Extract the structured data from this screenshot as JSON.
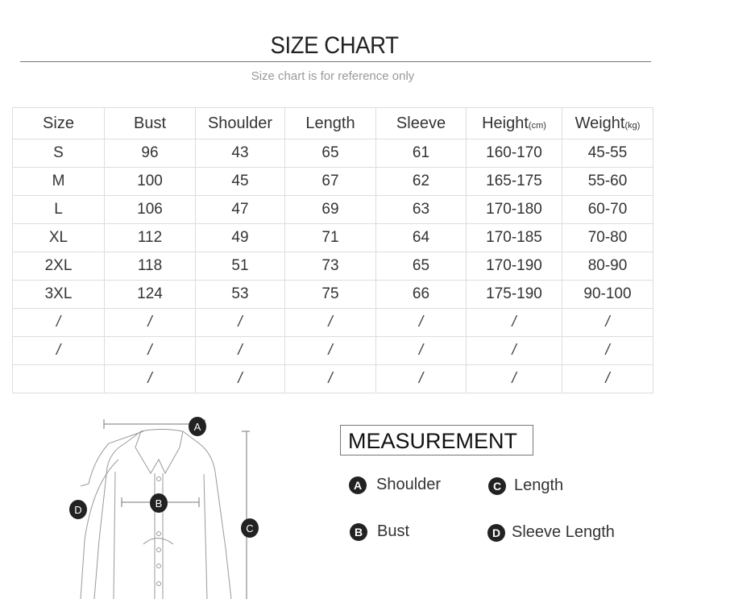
{
  "header": {
    "title": "SIZE CHART",
    "subtitle": "Size chart is for reference only"
  },
  "table": {
    "columns": [
      {
        "label": "Size",
        "unit": ""
      },
      {
        "label": "Bust",
        "unit": ""
      },
      {
        "label": "Shoulder",
        "unit": ""
      },
      {
        "label": "Length",
        "unit": ""
      },
      {
        "label": "Sleeve",
        "unit": ""
      },
      {
        "label": "Height",
        "unit": "(cm)"
      },
      {
        "label": "Weight",
        "unit": "(kg)"
      }
    ],
    "rows": [
      [
        "S",
        "96",
        "43",
        "65",
        "61",
        "160-170",
        "45-55"
      ],
      [
        "M",
        "100",
        "45",
        "67",
        "62",
        "165-175",
        "55-60"
      ],
      [
        "L",
        "106",
        "47",
        "69",
        "63",
        "170-180",
        "60-70"
      ],
      [
        "XL",
        "112",
        "49",
        "71",
        "64",
        "170-185",
        "70-80"
      ],
      [
        "2XL",
        "118",
        "51",
        "73",
        "65",
        "170-190",
        "80-90"
      ],
      [
        "3XL",
        "124",
        "53",
        "75",
        "66",
        "175-190",
        "90-100"
      ],
      [
        "/",
        "/",
        "/",
        "/",
        "/",
        "/",
        "/"
      ],
      [
        "/",
        "/",
        "/",
        "/",
        "/",
        "/",
        "/"
      ],
      [
        "",
        "/",
        "/",
        "/",
        "/",
        "/",
        "/"
      ]
    ]
  },
  "measurement": {
    "title": "MEASUREMENT",
    "items": [
      {
        "letter": "A",
        "label": "Shoulder"
      },
      {
        "letter": "B",
        "label": "Bust"
      },
      {
        "letter": "C",
        "label": "Length"
      },
      {
        "letter": "D",
        "label": "Sleeve Length"
      }
    ]
  }
}
